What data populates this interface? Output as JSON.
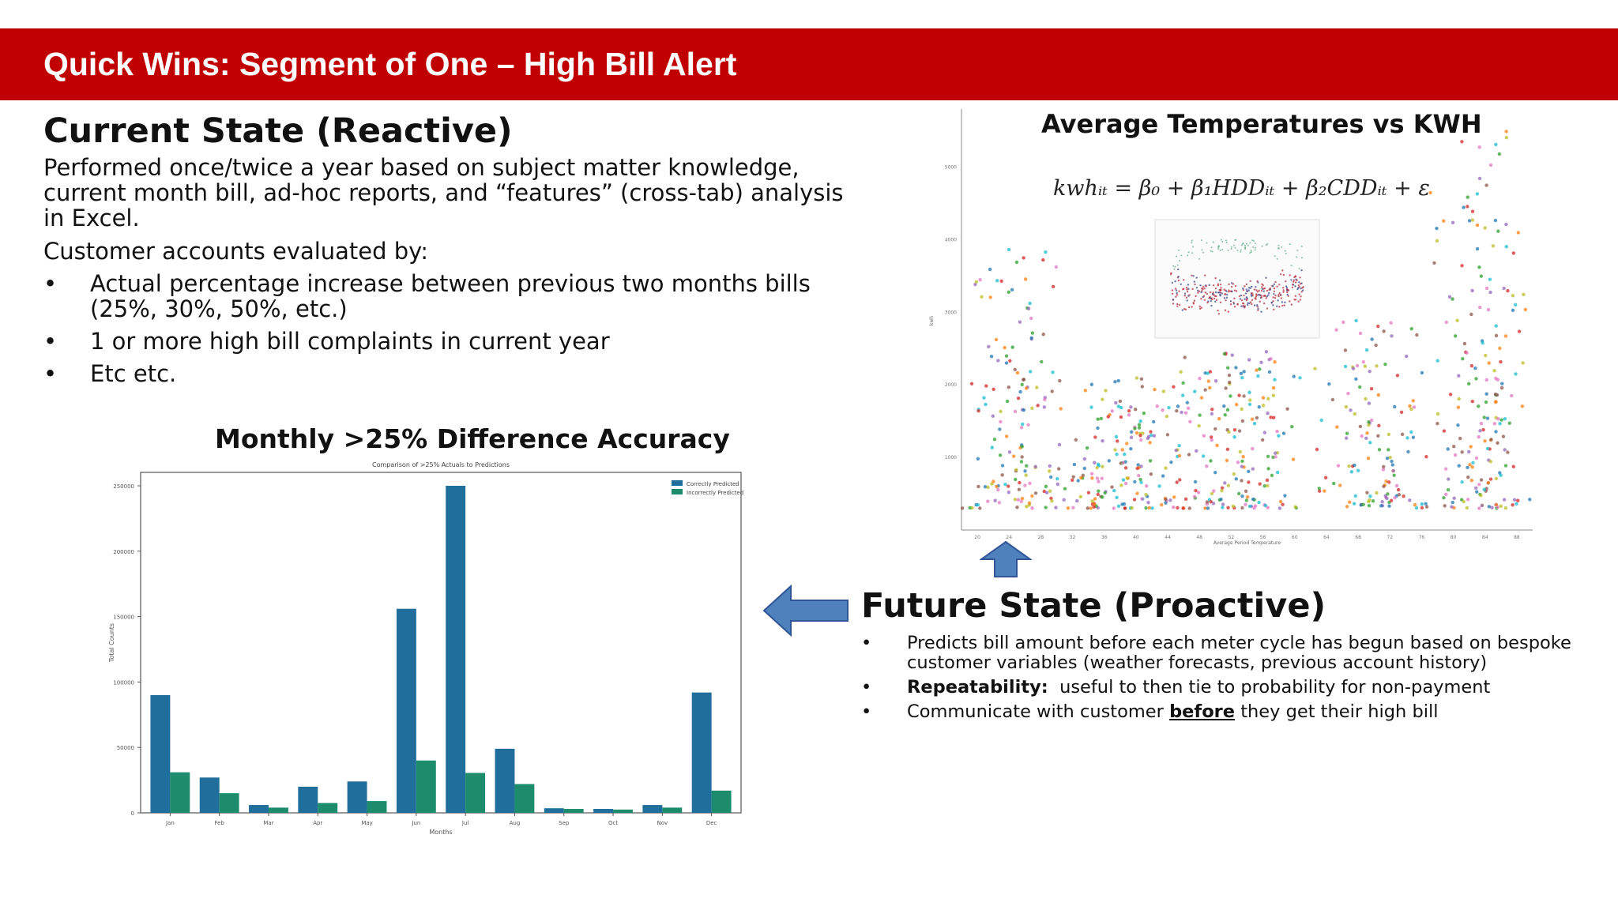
{
  "banner": {
    "title": "Quick Wins: Segment of One – High Bill Alert",
    "color": "#c00000"
  },
  "current_state": {
    "heading": "Current State (Reactive)",
    "description": "Performed once/twice a year based on subject matter knowledge, current month bill, ad-hoc reports, and “features” (cross-tab) analysis in Excel.",
    "evaluated_by": "Customer accounts evaluated by:",
    "bullets": [
      "Actual percentage increase between previous two months bills (25%, 30%, 50%, etc.)",
      "1 or more high bill complaints in current year",
      "Etc etc."
    ]
  },
  "bar_section": {
    "heading": "Monthly >25% Difference Accuracy"
  },
  "scatter_section": {
    "heading": "Average Temperatures vs KWH",
    "equation": "kwhᵢₜ = β₀ + β₁HDDᵢₜ + β₂CDDᵢₜ + ε"
  },
  "future_state": {
    "heading": "Future State (Proactive)",
    "bullet1": "Predicts bill amount before each meter cycle has begun based on bespoke customer variables (weather forecasts, previous account history)",
    "bullet2_label": "Repeatability:",
    "bullet2_text": "useful to then tie to probability for non-payment",
    "bullet3_pre": "Communicate with customer",
    "bullet3_em": "before",
    "bullet3_post": "they get their high bill"
  },
  "colors": {
    "correct": "#1f6e9c",
    "incorrect": "#1c8c6c",
    "arrow": "#4f81bd"
  },
  "chart_data": [
    {
      "type": "bar",
      "title": "Comparison of >25% Actuals to Predictions",
      "xlabel": "Months",
      "ylabel": "Total Counts",
      "categories": [
        "Jan",
        "Feb",
        "Mar",
        "Apr",
        "May",
        "Jun",
        "Jul",
        "Aug",
        "Sep",
        "Oct",
        "Nov",
        "Dec"
      ],
      "series": [
        {
          "name": "Correctly Predicted",
          "values": [
            90000,
            27000,
            6000,
            20000,
            24000,
            156000,
            250000,
            49000,
            3500,
            3000,
            6000,
            92000
          ]
        },
        {
          "name": "Incorrectly Predicted",
          "values": [
            31000,
            15000,
            4000,
            7500,
            9000,
            40000,
            30500,
            22000,
            3000,
            2500,
            4000,
            17000
          ]
        }
      ],
      "ylim": [
        0,
        250000
      ],
      "yticks": [
        0,
        50000,
        100000,
        150000,
        200000,
        250000
      ],
      "legend": "top-right",
      "grid": false
    },
    {
      "type": "scatter",
      "title": "Average Temperatures vs KWH",
      "xlabel": "Average Period Temperature",
      "ylabel": "kwh",
      "xlim": [
        18,
        90
      ],
      "ylim": [
        0,
        5800
      ],
      "grid": false
    }
  ]
}
